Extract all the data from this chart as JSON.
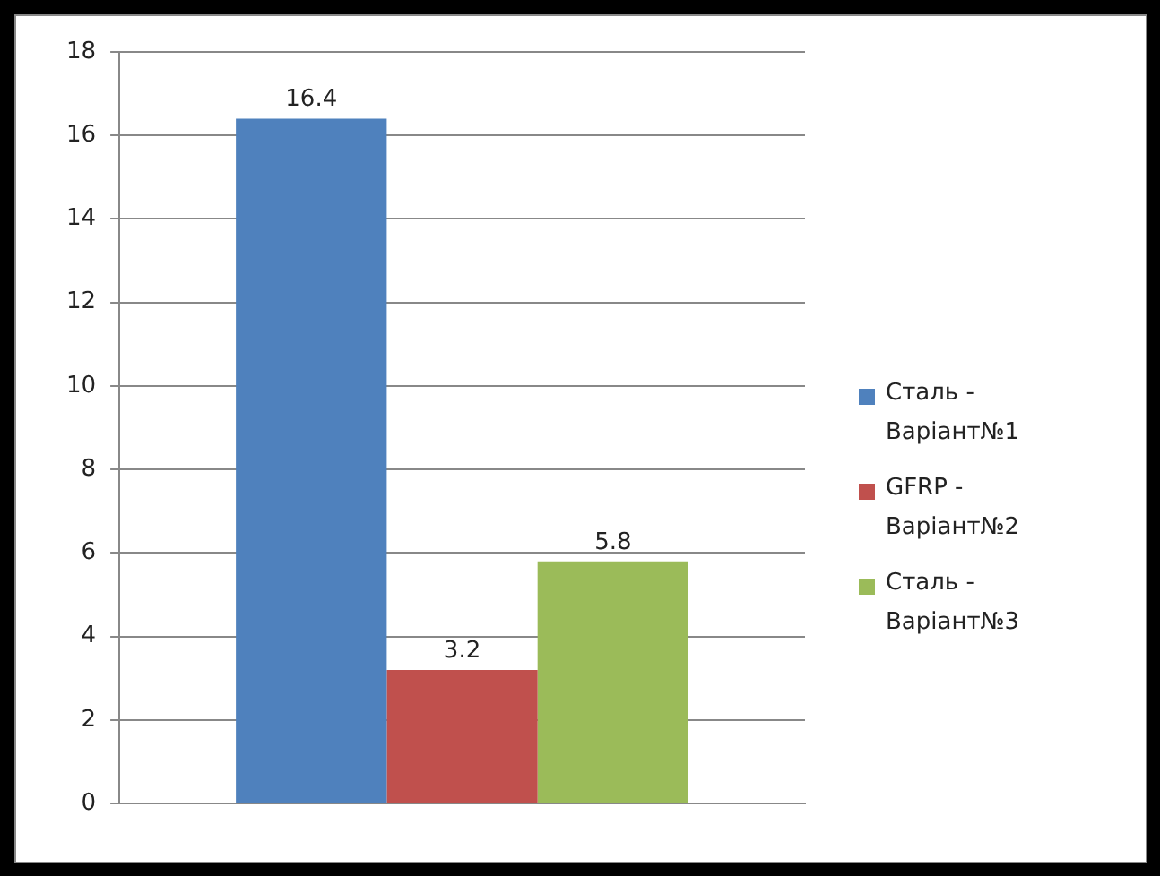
{
  "chart_data": {
    "type": "bar",
    "categories": [
      null
    ],
    "series": [
      {
        "name": "Сталь - Варіант№1",
        "color": "#4f81bd",
        "values": [
          16.4
        ]
      },
      {
        "name": "GFRP - Варіант№2",
        "color": "#c0504d",
        "values": [
          3.2
        ]
      },
      {
        "name": "Сталь - Варіант№3",
        "color": "#9bbb59",
        "values": [
          5.8
        ]
      }
    ],
    "ylim": [
      0,
      18
    ],
    "yticks": [
      0,
      2,
      4,
      6,
      8,
      10,
      12,
      14,
      16,
      18
    ],
    "grid": "y",
    "legend": "right",
    "data_labels": true
  }
}
